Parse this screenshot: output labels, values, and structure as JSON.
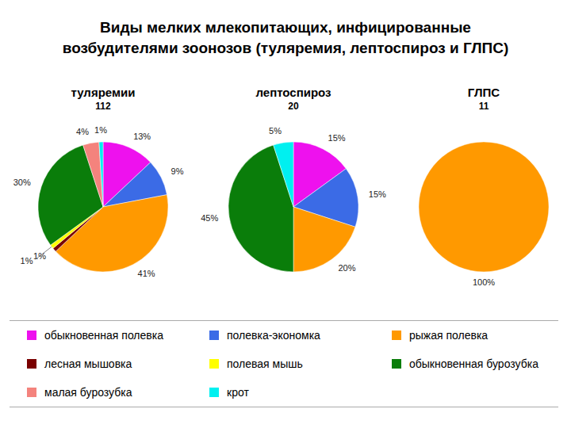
{
  "title": "Виды мелких млекопитающих, инфицированные возбудителями зоонозов (туляремия, лептоспироз и ГЛПС)",
  "chart_data": [
    {
      "type": "pie",
      "title": "туляремии",
      "subtitle": "112",
      "categories": [
        "обыкновенная полевка",
        "полевка-экономка",
        "рыжая полевка",
        "лесная мышовка",
        "полевая мышь",
        "обыкновенная бурозубка",
        "малая бурозубка",
        "крот"
      ],
      "values": [
        13,
        9,
        41,
        1,
        1,
        30,
        4,
        1
      ],
      "value_labels": [
        "13%",
        "9%",
        "41%",
        "1%",
        "1%",
        "30%",
        "4%",
        "1%"
      ],
      "colors": [
        "#ee11ee",
        "#3b6be6",
        "#ff9900",
        "#7a0000",
        "#ffff00",
        "#0a7d0a",
        "#f4837d",
        "#00f0f0"
      ],
      "data_labels": true,
      "legend": "bottom"
    },
    {
      "type": "pie",
      "title": "лептоспироз",
      "subtitle": "20",
      "categories": [
        "обыкновенная полевка",
        "полевка-экономка",
        "рыжая полевка",
        "обыкновенная бурозубка",
        "крот"
      ],
      "values": [
        15,
        15,
        20,
        45,
        5
      ],
      "value_labels": [
        "15%",
        "15%",
        "20%",
        "45%",
        "5%"
      ],
      "colors": [
        "#ee11ee",
        "#3b6be6",
        "#ff9900",
        "#0a7d0a",
        "#00f0f0"
      ],
      "data_labels": true,
      "legend": "bottom"
    },
    {
      "type": "pie",
      "title": "ГЛПС",
      "subtitle": "11",
      "categories": [
        "рыжая полевка"
      ],
      "values": [
        100
      ],
      "value_labels": [
        "100%"
      ],
      "colors": [
        "#ff9900"
      ],
      "data_labels": true,
      "legend": "bottom"
    }
  ]
}
